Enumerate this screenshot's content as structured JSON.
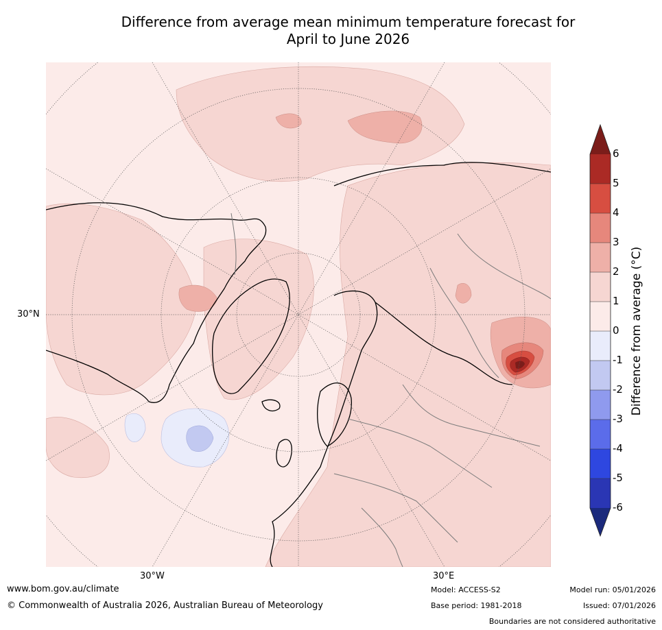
{
  "title": {
    "line1": "Difference from average mean minimum temperature forecast for",
    "line2": "April to June 2026"
  },
  "map": {
    "lat_label": "30°N",
    "lon_labels": [
      "30°W",
      "30°E"
    ]
  },
  "colorbar": {
    "label": "Difference from average (°C)",
    "ticks": [
      "6",
      "5",
      "4",
      "3",
      "2",
      "1",
      "0",
      "-1",
      "-2",
      "-3",
      "-4",
      "-5",
      "-6"
    ],
    "colors": [
      "#7b1d1a",
      "#ab2a25",
      "#d74e41",
      "#e6877c",
      "#eeb0a8",
      "#f6d6d2",
      "#fcebe9",
      "#e9ecfb",
      "#c2c9f1",
      "#8f9aee",
      "#5b6cea",
      "#2e47e0",
      "#2a36b4",
      "#1b2a7c"
    ]
  },
  "footer": {
    "url": "www.bom.gov.au/climate",
    "copyright": "© Commonwealth of Australia 2026, Australian Bureau of Meteorology",
    "model": "Model: ACCESS-S2",
    "base_period": "Base period: 1981-2018",
    "model_run": "Model run: 05/01/2026",
    "issued": "Issued: 07/01/2026",
    "disclaimer": "Boundaries are not considered authoritative"
  }
}
